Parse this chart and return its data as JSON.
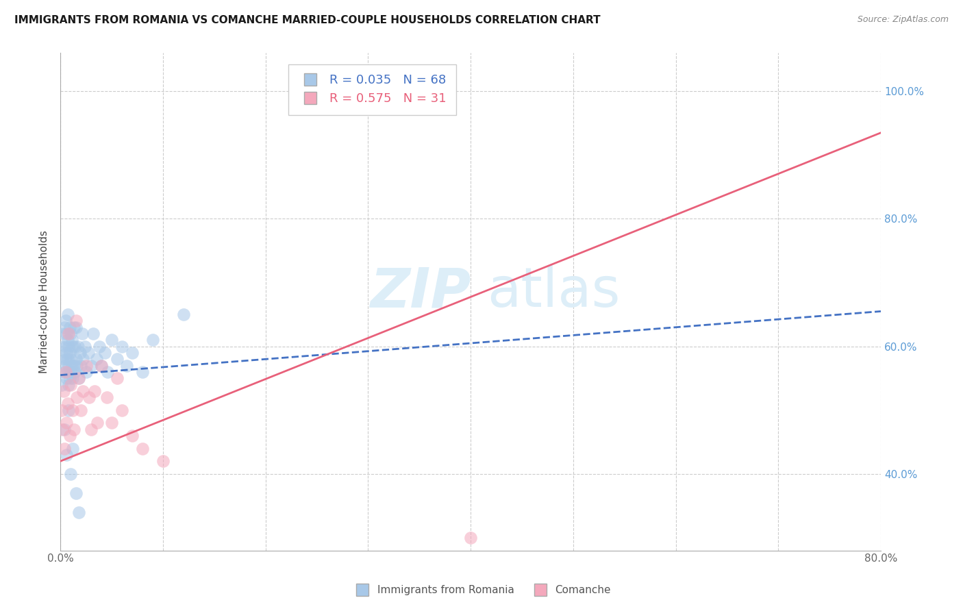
{
  "title": "IMMIGRANTS FROM ROMANIA VS COMANCHE MARRIED-COUPLE HOUSEHOLDS CORRELATION CHART",
  "source": "Source: ZipAtlas.com",
  "ylabel": "Married-couple Households",
  "legend_labels": [
    "Immigrants from Romania",
    "Comanche"
  ],
  "r_values": [
    0.035,
    0.575
  ],
  "n_values": [
    68,
    31
  ],
  "blue_color": "#a8c8e8",
  "pink_color": "#f4a8bc",
  "blue_line_color": "#4472c4",
  "pink_line_color": "#e8607a",
  "right_axis_color": "#5b9bd5",
  "xmin": 0.0,
  "xmax": 0.8,
  "ymin": 0.28,
  "ymax": 1.06,
  "right_yticks": [
    0.4,
    0.6,
    0.8,
    1.0
  ],
  "right_yticklabels": [
    "40.0%",
    "60.0%",
    "80.0%",
    "100.0%"
  ],
  "xticks": [
    0.0,
    0.1,
    0.2,
    0.3,
    0.4,
    0.5,
    0.6,
    0.7,
    0.8
  ],
  "xticklabels": [
    "0.0%",
    "",
    "",
    "",
    "",
    "",
    "",
    "",
    "80.0%"
  ],
  "blue_line_x": [
    0.0,
    0.8
  ],
  "blue_line_y": [
    0.555,
    0.655
  ],
  "pink_line_x": [
    0.0,
    0.8
  ],
  "pink_line_y": [
    0.42,
    0.935
  ],
  "blue_scatter_x": [
    0.001,
    0.002,
    0.002,
    0.003,
    0.003,
    0.004,
    0.004,
    0.005,
    0.005,
    0.005,
    0.006,
    0.006,
    0.006,
    0.007,
    0.007,
    0.007,
    0.007,
    0.008,
    0.008,
    0.008,
    0.009,
    0.009,
    0.009,
    0.01,
    0.01,
    0.01,
    0.011,
    0.011,
    0.012,
    0.012,
    0.013,
    0.013,
    0.014,
    0.014,
    0.015,
    0.015,
    0.016,
    0.017,
    0.018,
    0.019,
    0.02,
    0.021,
    0.022,
    0.024,
    0.025,
    0.027,
    0.03,
    0.032,
    0.035,
    0.038,
    0.04,
    0.043,
    0.046,
    0.05,
    0.055,
    0.06,
    0.065,
    0.07,
    0.08,
    0.09,
    0.004,
    0.006,
    0.008,
    0.01,
    0.012,
    0.015,
    0.018,
    0.12
  ],
  "blue_scatter_y": [
    0.54,
    0.58,
    0.6,
    0.56,
    0.62,
    0.57,
    0.63,
    0.58,
    0.6,
    0.64,
    0.55,
    0.59,
    0.62,
    0.56,
    0.58,
    0.61,
    0.65,
    0.54,
    0.57,
    0.6,
    0.55,
    0.59,
    0.63,
    0.56,
    0.58,
    0.62,
    0.57,
    0.61,
    0.55,
    0.6,
    0.57,
    0.63,
    0.56,
    0.6,
    0.58,
    0.63,
    0.57,
    0.6,
    0.55,
    0.59,
    0.57,
    0.62,
    0.58,
    0.6,
    0.56,
    0.59,
    0.57,
    0.62,
    0.58,
    0.6,
    0.57,
    0.59,
    0.56,
    0.61,
    0.58,
    0.6,
    0.57,
    0.59,
    0.56,
    0.61,
    0.47,
    0.43,
    0.5,
    0.4,
    0.44,
    0.37,
    0.34,
    0.65
  ],
  "pink_scatter_x": [
    0.001,
    0.002,
    0.003,
    0.004,
    0.005,
    0.006,
    0.007,
    0.008,
    0.009,
    0.01,
    0.012,
    0.013,
    0.015,
    0.016,
    0.018,
    0.02,
    0.022,
    0.025,
    0.028,
    0.03,
    0.033,
    0.036,
    0.04,
    0.045,
    0.05,
    0.055,
    0.06,
    0.07,
    0.08,
    0.1,
    0.4
  ],
  "pink_scatter_y": [
    0.5,
    0.47,
    0.53,
    0.44,
    0.56,
    0.48,
    0.51,
    0.62,
    0.46,
    0.54,
    0.5,
    0.47,
    0.64,
    0.52,
    0.55,
    0.5,
    0.53,
    0.57,
    0.52,
    0.47,
    0.53,
    0.48,
    0.57,
    0.52,
    0.48,
    0.55,
    0.5,
    0.46,
    0.44,
    0.42,
    0.3
  ]
}
